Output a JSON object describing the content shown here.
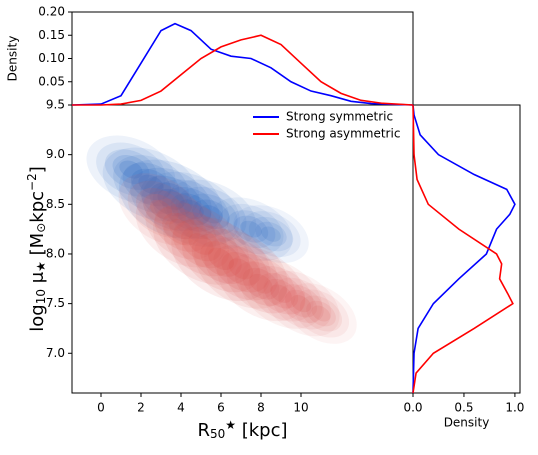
{
  "chart_data": [
    {
      "type": "kde",
      "xlabel_parts": [
        {
          "text": "R"
        },
        {
          "text": "50",
          "shift": "sub"
        },
        {
          "text": "★",
          "shift": "sup"
        },
        {
          "text": " [kpc]"
        }
      ],
      "ylabel_parts": [
        {
          "text": "log"
        },
        {
          "text": "10",
          "shift": "sub"
        },
        {
          "text": " μ"
        },
        {
          "text": "★",
          "shift": "sub"
        },
        {
          "text": " [M"
        },
        {
          "text": "⊙",
          "shift": "sub"
        },
        {
          "text": "kpc"
        },
        {
          "text": "−2",
          "shift": "sup"
        },
        {
          "text": "]"
        }
      ],
      "xlim": [
        -1.45,
        15.6
      ],
      "ylim": [
        6.6,
        9.5
      ],
      "xticks": [
        0,
        2,
        4,
        6,
        8,
        10
      ],
      "yticks": [
        {
          "value": 7.0,
          "label": "7.0"
        },
        7.5,
        {
          "value": 8.0,
          "label": "8.0"
        },
        8.5,
        {
          "value": 9.0,
          "label": "9.0"
        },
        9.5
      ],
      "legend": "upper right",
      "series": [
        {
          "name": "Strong symmetric",
          "color": "#1f5fbf",
          "line_color": "#0000ff",
          "x": [
            1.5,
            2.5,
            3.5,
            4.5,
            5.5,
            7.5,
            8.5
          ],
          "values": [
            8.85,
            8.7,
            8.55,
            8.45,
            8.4,
            8.25,
            8.2
          ]
        },
        {
          "name": "Strong asymmetric",
          "color": "#d9534f",
          "line_color": "#ff0000",
          "x": [
            3,
            4,
            5,
            6,
            7,
            8,
            9,
            10,
            11
          ],
          "values": [
            8.45,
            8.25,
            8.1,
            7.95,
            7.85,
            7.7,
            7.6,
            7.5,
            7.4
          ]
        }
      ]
    },
    {
      "type": "line",
      "orientation": "vertical",
      "ylabel": "Density",
      "xlim": [
        -1.45,
        15.6
      ],
      "ylim": [
        0,
        0.2
      ],
      "yticks": [
        {
          "value": 0.05,
          "label": "0.05"
        },
        {
          "value": 0.1,
          "label": "0.10"
        },
        {
          "value": 0.15,
          "label": "0.15"
        },
        {
          "value": 0.2,
          "label": "0.20"
        }
      ],
      "series": [
        {
          "color": "#0000ff",
          "x": [
            -1.45,
            0,
            1,
            2,
            3,
            3.7,
            4.5,
            5.5,
            6.5,
            7.5,
            8.5,
            9.5,
            10.5,
            11.5,
            12.5,
            13.5,
            15.6
          ],
          "values": [
            0,
            0.002,
            0.02,
            0.09,
            0.16,
            0.175,
            0.16,
            0.12,
            0.105,
            0.1,
            0.08,
            0.05,
            0.03,
            0.02,
            0.008,
            0.003,
            0
          ]
        },
        {
          "color": "#ff0000",
          "x": [
            -1.45,
            0,
            1,
            2,
            3,
            4,
            5,
            6,
            7,
            8,
            9,
            10,
            11,
            12,
            13,
            14,
            15.6
          ],
          "values": [
            0,
            0,
            0.002,
            0.01,
            0.03,
            0.065,
            0.1,
            0.125,
            0.14,
            0.15,
            0.13,
            0.09,
            0.05,
            0.025,
            0.01,
            0.004,
            0
          ]
        }
      ]
    },
    {
      "type": "line",
      "orientation": "horizontal",
      "xlabel": "Density",
      "xlim": [
        0,
        1.05
      ],
      "ylim": [
        6.6,
        9.5
      ],
      "xticks": [
        {
          "value": 0,
          "label": "0.0"
        },
        0.5,
        {
          "value": 1,
          "label": "1.0"
        }
      ],
      "series": [
        {
          "color": "#0000ff",
          "y": [
            6.6,
            7.0,
            7.25,
            7.5,
            7.75,
            8.0,
            8.25,
            8.4,
            8.5,
            8.65,
            8.8,
            9.0,
            9.2,
            9.4,
            9.5
          ],
          "values": [
            0,
            0.01,
            0.05,
            0.2,
            0.45,
            0.72,
            0.82,
            0.95,
            1.0,
            0.92,
            0.6,
            0.25,
            0.07,
            0.01,
            0
          ]
        },
        {
          "color": "#ff0000",
          "y": [
            6.6,
            6.8,
            7.0,
            7.25,
            7.5,
            7.6,
            7.75,
            7.9,
            8.0,
            8.25,
            8.5,
            8.75,
            9.0,
            9.5
          ],
          "values": [
            0,
            0.03,
            0.2,
            0.6,
            0.98,
            0.93,
            0.85,
            0.87,
            0.82,
            0.45,
            0.15,
            0.04,
            0.01,
            0
          ]
        }
      ]
    }
  ]
}
